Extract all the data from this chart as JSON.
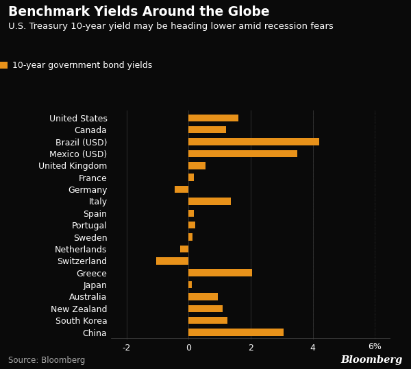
{
  "title": "Benchmark Yields Around the Globe",
  "subtitle": "U.S. Treasury 10-year yield may be heading lower amid recession fears",
  "legend_label": "10-year government bond yields",
  "source": "Source: Bloomberg",
  "bloomberg_label": "Bloomberg",
  "countries": [
    "United States",
    "Canada",
    "Brazil (USD)",
    "Mexico (USD)",
    "United Kingdom",
    "France",
    "Germany",
    "Italy",
    "Spain",
    "Portugal",
    "Sweden",
    "Netherlands",
    "Switzerland",
    "Greece",
    "Japan",
    "Australia",
    "New Zealand",
    "South Korea",
    "China"
  ],
  "values": [
    1.6,
    1.2,
    4.2,
    3.5,
    0.55,
    0.18,
    -0.45,
    1.35,
    0.18,
    0.22,
    0.12,
    -0.28,
    -1.05,
    2.05,
    0.1,
    0.95,
    1.1,
    1.25,
    3.05
  ],
  "bar_color": "#E8921A",
  "background_color": "#0a0a0a",
  "text_color": "#ffffff",
  "grid_color": "#333333",
  "xlim": [
    -2.5,
    6.5
  ],
  "xticks": [
    -2,
    0,
    2,
    4
  ],
  "xlabel_pct": "6%",
  "title_fontsize": 13.5,
  "subtitle_fontsize": 9.5,
  "tick_fontsize": 9,
  "label_fontsize": 9,
  "legend_fontsize": 9,
  "source_fontsize": 8.5
}
